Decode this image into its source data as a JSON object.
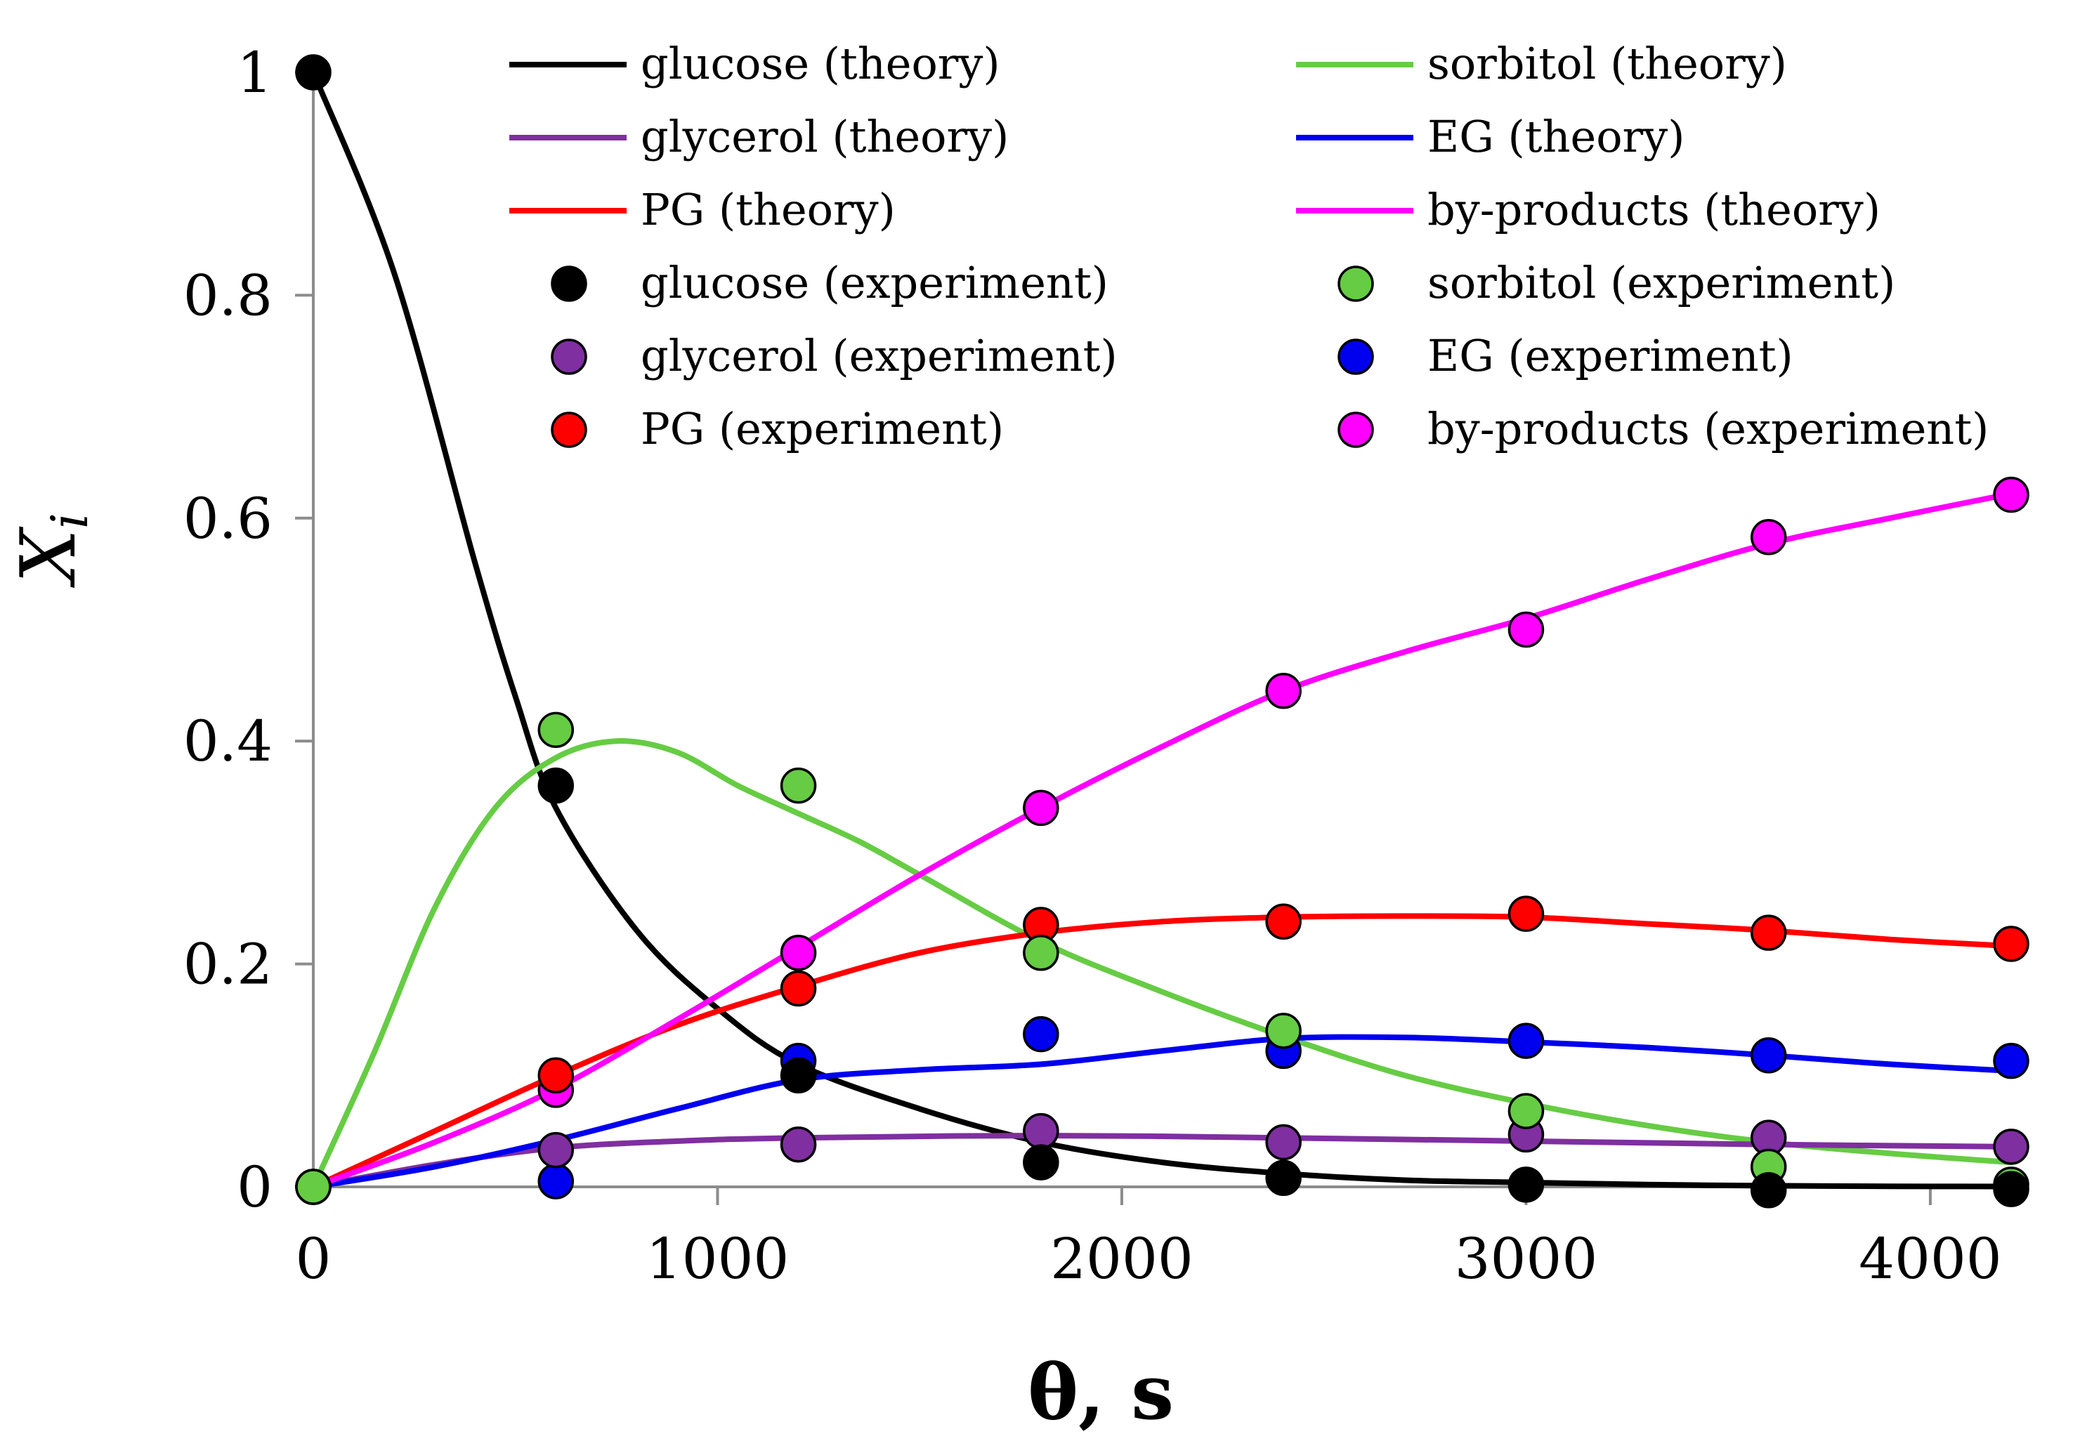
{
  "chart_data": {
    "type": "line",
    "title": "",
    "xlabel": "θ, s",
    "ylabel": "X",
    "ylabel_subscript": "i",
    "xlim": [
      0,
      4200
    ],
    "ylim": [
      0,
      1
    ],
    "xticks": [
      0,
      1000,
      2000,
      3000,
      4000
    ],
    "yticks": [
      0,
      0.2,
      0.4,
      0.6,
      0.8,
      1
    ],
    "ytick_labels": [
      "0",
      "0.2",
      "0.4",
      "0.6",
      "0.8",
      "1"
    ],
    "grid": false,
    "legend_position": "top-right",
    "series": [
      {
        "name": "glucose (theory)",
        "kind": "line",
        "color": "#000000",
        "x": [
          0,
          200,
          400,
          500,
          600,
          800,
          1000,
          1200,
          1500,
          1800,
          2100,
          2400,
          2700,
          3000,
          3300,
          3600,
          3900,
          4200
        ],
        "y": [
          1.0,
          0.82,
          0.56,
          0.44,
          0.34,
          0.23,
          0.16,
          0.11,
          0.07,
          0.04,
          0.022,
          0.012,
          0.006,
          0.004,
          0.002,
          0.001,
          0.0005,
          0.0003
        ]
      },
      {
        "name": "sorbitol (theory)",
        "kind": "line",
        "color": "#66cc44",
        "x": [
          0,
          150,
          300,
          450,
          600,
          750,
          900,
          1050,
          1200,
          1350,
          1500,
          1800,
          2100,
          2400,
          2700,
          3000,
          3300,
          3600,
          3900,
          4200
        ],
        "y": [
          0,
          0.12,
          0.25,
          0.34,
          0.385,
          0.4,
          0.39,
          0.36,
          0.335,
          0.31,
          0.28,
          0.22,
          0.175,
          0.135,
          0.1,
          0.075,
          0.055,
          0.04,
          0.03,
          0.022
        ]
      },
      {
        "name": "glycerol (theory)",
        "kind": "line",
        "color": "#7f2fa0",
        "x": [
          0,
          300,
          600,
          900,
          1200,
          1800,
          2400,
          3000,
          3600,
          4200
        ],
        "y": [
          0,
          0.02,
          0.035,
          0.041,
          0.044,
          0.046,
          0.044,
          0.041,
          0.038,
          0.036
        ]
      },
      {
        "name": "EG (theory)",
        "kind": "line",
        "color": "#0000ee",
        "x": [
          0,
          300,
          600,
          900,
          1200,
          1500,
          1800,
          2100,
          2400,
          2700,
          3000,
          3300,
          3600,
          3900,
          4200
        ],
        "y": [
          0,
          0.018,
          0.042,
          0.07,
          0.096,
          0.105,
          0.11,
          0.122,
          0.133,
          0.134,
          0.13,
          0.125,
          0.118,
          0.11,
          0.104
        ]
      },
      {
        "name": "PG (theory)",
        "kind": "line",
        "color": "#ff0000",
        "x": [
          0,
          300,
          600,
          900,
          1200,
          1500,
          1800,
          2100,
          2400,
          2700,
          3000,
          3300,
          3600,
          3900,
          4200
        ],
        "y": [
          0,
          0.05,
          0.1,
          0.145,
          0.18,
          0.21,
          0.228,
          0.238,
          0.242,
          0.243,
          0.242,
          0.236,
          0.23,
          0.222,
          0.216
        ]
      },
      {
        "name": "by-products (theory)",
        "kind": "line",
        "color": "#ff00ff",
        "x": [
          0,
          300,
          600,
          900,
          1200,
          1500,
          1800,
          2100,
          2400,
          2700,
          3000,
          3300,
          3600,
          3900,
          4200
        ],
        "y": [
          0,
          0.04,
          0.088,
          0.15,
          0.215,
          0.28,
          0.34,
          0.395,
          0.445,
          0.48,
          0.51,
          0.545,
          0.577,
          0.6,
          0.622
        ]
      },
      {
        "name": "glucose (experiment)",
        "kind": "scatter",
        "color": "#000000",
        "x": [
          0,
          600,
          1200,
          1800,
          2400,
          3000,
          3600,
          4200
        ],
        "y": [
          1.0,
          0.36,
          0.1,
          0.022,
          0.008,
          0.002,
          -0.003,
          -0.002
        ]
      },
      {
        "name": "sorbitol (experiment)",
        "kind": "scatter",
        "color": "#66cc44",
        "x": [
          0,
          600,
          1200,
          1800,
          2400,
          3000,
          3600,
          4200
        ],
        "y": [
          0,
          0.41,
          0.36,
          0.21,
          0.14,
          0.068,
          0.018,
          0.002
        ]
      },
      {
        "name": "glycerol (experiment)",
        "kind": "scatter",
        "color": "#7f2fa0",
        "x": [
          0,
          600,
          1200,
          1800,
          2400,
          3000,
          3600,
          4200
        ],
        "y": [
          0,
          0.033,
          0.038,
          0.05,
          0.04,
          0.047,
          0.044,
          0.036
        ]
      },
      {
        "name": "EG (experiment)",
        "kind": "scatter",
        "color": "#0000ee",
        "x": [
          0,
          600,
          1200,
          1800,
          2400,
          3000,
          3600,
          4200
        ],
        "y": [
          0,
          0.005,
          0.113,
          0.137,
          0.122,
          0.131,
          0.118,
          0.113
        ]
      },
      {
        "name": "PG (experiment)",
        "kind": "scatter",
        "color": "#ff0000",
        "x": [
          0,
          600,
          1200,
          1800,
          2400,
          3000,
          3600,
          4200
        ],
        "y": [
          0,
          0.1,
          0.178,
          0.235,
          0.238,
          0.245,
          0.228,
          0.218
        ]
      },
      {
        "name": "by-products (experiment)",
        "kind": "scatter",
        "color": "#ff00ff",
        "x": [
          0,
          600,
          1200,
          1800,
          2400,
          3000,
          3600,
          4200
        ],
        "y": [
          0,
          0.087,
          0.21,
          0.34,
          0.445,
          0.5,
          0.583,
          0.621
        ]
      }
    ],
    "legend_order": [
      "glucose (theory)",
      "sorbitol (theory)",
      "glycerol (theory)",
      "EG (theory)",
      "PG (theory)",
      "by-products (theory)",
      "glucose (experiment)",
      "sorbitol (experiment)",
      "glycerol (experiment)",
      "EG (experiment)",
      "PG (experiment)",
      "by-products (experiment)"
    ]
  }
}
